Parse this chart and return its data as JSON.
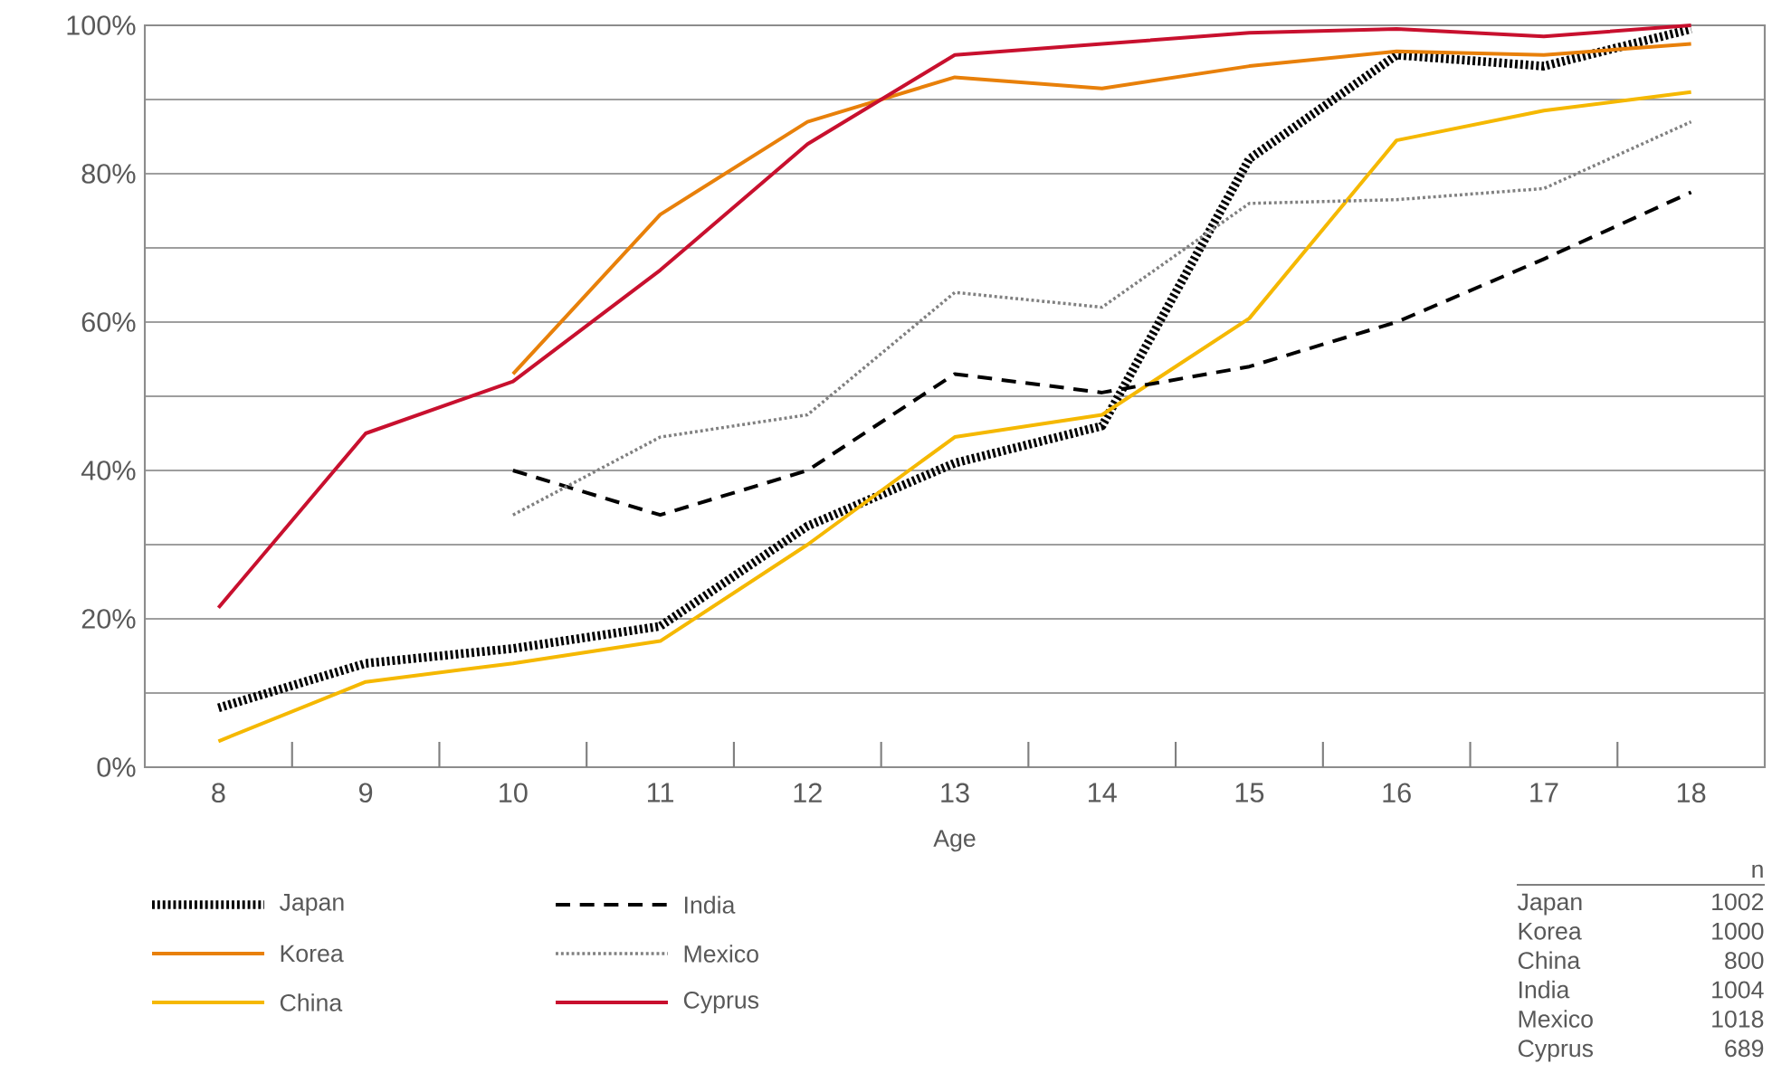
{
  "chart_data": {
    "type": "line",
    "categories": [
      "8",
      "9",
      "10",
      "11",
      "12",
      "13",
      "14",
      "15",
      "16",
      "17",
      "18"
    ],
    "xlabel": "Age",
    "ylim": [
      0,
      100
    ],
    "yticks": [
      {
        "value": 0,
        "label": "0%"
      },
      {
        "value": 10,
        "label": null
      },
      {
        "value": 20,
        "label": "20%"
      },
      {
        "value": 30,
        "label": null
      },
      {
        "value": 40,
        "label": "40%"
      },
      {
        "value": 50,
        "label": null
      },
      {
        "value": 60,
        "label": "60%"
      },
      {
        "value": 70,
        "label": null
      },
      {
        "value": 80,
        "label": "80%"
      },
      {
        "value": 90,
        "label": null
      },
      {
        "value": 100,
        "label": "100%"
      }
    ],
    "grid": "y",
    "legend": "bottom",
    "series": [
      {
        "name": "Japan",
        "color": "#000000",
        "line_style": "dotted",
        "values": [
          8,
          14,
          16,
          19,
          32.5,
          41,
          46,
          82,
          96,
          94.5,
          99.5
        ]
      },
      {
        "name": "Korea",
        "color": "#e8800a",
        "line_style": "solid",
        "values": [
          null,
          null,
          53,
          74.5,
          87,
          93,
          91.5,
          94.5,
          96.5,
          96,
          97.5
        ]
      },
      {
        "name": "China",
        "color": "#f5b800",
        "line_style": "solid",
        "values": [
          3.5,
          11.5,
          14,
          17,
          30,
          44.5,
          47.5,
          60.5,
          84.5,
          88.5,
          91
        ]
      },
      {
        "name": "India",
        "color": "#000000",
        "line_style": "dashed",
        "values": [
          null,
          null,
          40,
          34,
          40,
          53,
          50.5,
          54,
          60,
          68.5,
          77.5
        ]
      },
      {
        "name": "Mexico",
        "color": "#808080",
        "line_style": "dotted",
        "values": [
          null,
          null,
          34,
          44.5,
          47.5,
          64,
          62,
          76,
          76.5,
          78,
          87
        ]
      },
      {
        "name": "Cyprus",
        "color": "#c8102e",
        "line_style": "solid",
        "values": [
          21.5,
          45,
          52,
          67,
          84,
          96,
          97.5,
          99,
          99.5,
          98.5,
          100
        ]
      }
    ],
    "annotations": [
      "n",
      "Japan",
      "1002",
      "Korea",
      "1000",
      "China",
      "800",
      "India",
      "1004",
      "Mexico",
      "1018",
      "Cyprus",
      "689"
    ]
  }
}
